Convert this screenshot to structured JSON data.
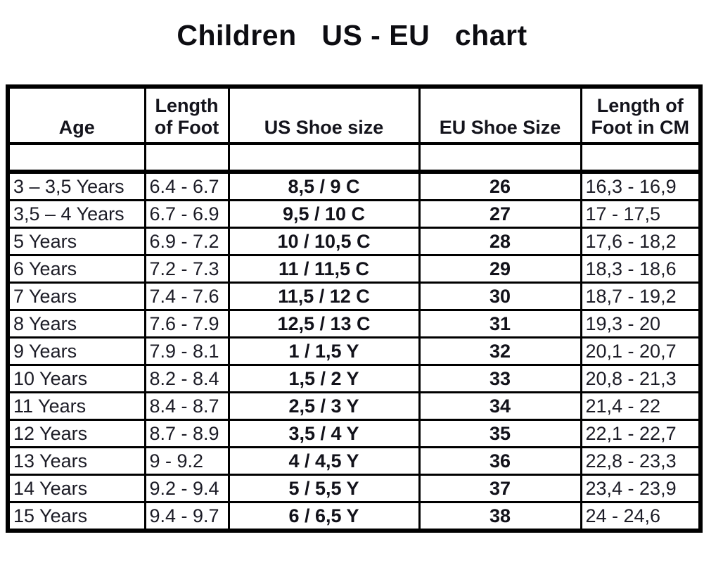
{
  "page": {
    "title": "Children   US - EU   chart"
  },
  "chart_data": {
    "type": "table",
    "title": "Children US - EU chart",
    "headers": [
      {
        "lines": [
          "Age"
        ]
      },
      {
        "lines": [
          "Length",
          "of Foot"
        ]
      },
      {
        "lines": [
          "US Shoe size"
        ]
      },
      {
        "lines": [
          "EU Shoe Size"
        ]
      },
      {
        "lines": [
          "Length of",
          "Foot in CM"
        ]
      }
    ],
    "column_keys": [
      "age",
      "length_of_foot_inch",
      "us_shoe_size",
      "eu_shoe_size",
      "length_of_foot_cm"
    ],
    "rows": [
      [
        "3 – 3,5 Years",
        "6.4 - 6.7",
        "8,5 / 9 C",
        "26",
        "16,3 - 16,9"
      ],
      [
        "3,5 – 4 Years",
        "6.7 - 6.9",
        "9,5 / 10 C",
        "27",
        "17 - 17,5"
      ],
      [
        "5 Years",
        "6.9 - 7.2",
        "10 / 10,5 C",
        "28",
        "17,6 - 18,2"
      ],
      [
        "6 Years",
        "7.2 - 7.3",
        "11 / 11,5 C",
        "29",
        "18,3 - 18,6"
      ],
      [
        "7 Years",
        "7.4 - 7.6",
        "11,5 / 12 C",
        "30",
        "18,7 - 19,2"
      ],
      [
        "8 Years",
        "7.6 - 7.9",
        "12,5 / 13 C",
        "31",
        "19,3 - 20"
      ],
      [
        "9 Years",
        "7.9 - 8.1",
        "1 / 1,5 Y",
        "32",
        "20,1 - 20,7"
      ],
      [
        "10 Years",
        "8.2 - 8.4",
        "1,5 / 2 Y",
        "33",
        "20,8 - 21,3"
      ],
      [
        "11 Years",
        "8.4 - 8.7",
        "2,5 / 3 Y",
        "34",
        "21,4 - 22"
      ],
      [
        "12 Years",
        "8.7 - 8.9",
        "3,5 / 4 Y",
        "35",
        "22,1 - 22,7"
      ],
      [
        "13 Years",
        "9 - 9.2",
        "4 / 4,5 Y",
        "36",
        "22,8 - 23,3"
      ],
      [
        "14 Years",
        "9.2 - 9.4",
        "5 / 5,5 Y",
        "37",
        "23,4 - 23,9"
      ],
      [
        "15 Years",
        "9.4 - 9.7",
        "6 / 6,5 Y",
        "38",
        "24 - 24,6"
      ]
    ]
  }
}
